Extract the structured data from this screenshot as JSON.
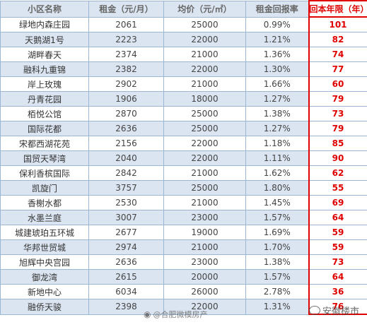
{
  "headers": [
    "小区名称",
    "租金（元/月）",
    "均价（元/㎡）",
    "租金回报率",
    "回本年限（年）"
  ],
  "rows": [
    [
      "绿地内森庄园",
      "2061",
      "25000",
      "0.99%",
      "101"
    ],
    [
      "天鹅湖1号",
      "2223",
      "22000",
      "1.21%",
      "82"
    ],
    [
      "湖畔春天",
      "2374",
      "21000",
      "1.36%",
      "74"
    ],
    [
      "融科九重锦",
      "2382",
      "22000",
      "1.30%",
      "77"
    ],
    [
      "岸上玫瑰",
      "2902",
      "21000",
      "1.66%",
      "60"
    ],
    [
      "丹青花园",
      "1906",
      "18000",
      "1.27%",
      "79"
    ],
    [
      "栢悦公馆",
      "2870",
      "25000",
      "1.38%",
      "73"
    ],
    [
      "国际花都",
      "2636",
      "25000",
      "1.27%",
      "79"
    ],
    [
      "宋都西湖花苑",
      "2156",
      "22000",
      "1.18%",
      "85"
    ],
    [
      "国贸天琴湾",
      "2040",
      "22000",
      "1.11%",
      "90"
    ],
    [
      "保利香槟国际",
      "2842",
      "21000",
      "1.62%",
      "62"
    ],
    [
      "凯旋门",
      "3757",
      "25000",
      "1.80%",
      "55"
    ],
    [
      "香榭水都",
      "2530",
      "21000",
      "1.45%",
      "69"
    ],
    [
      "水墨兰庭",
      "3007",
      "23000",
      "1.57%",
      "64"
    ],
    [
      "城建琥珀五环城",
      "2677",
      "19000",
      "1.69%",
      "59"
    ],
    [
      "华邦世贸城",
      "2974",
      "21000",
      "1.70%",
      "59"
    ],
    [
      "旭辉中央宫园",
      "2636",
      "23000",
      "1.38%",
      "73"
    ],
    [
      "御龙湾",
      "2615",
      "20000",
      "1.57%",
      "64"
    ],
    [
      "新地中心",
      "6034",
      "26000",
      "2.78%",
      "36"
    ],
    [
      "融侨天骏",
      "2398",
      "22000",
      "1.31%",
      "76"
    ]
  ],
  "watermarks": {
    "weibo": "@合肥微模房产",
    "wechat": "安徽楼市"
  },
  "colors": {
    "header_bg": "#dbe5f1",
    "stripe_bg": "#dbe5f1",
    "border": "#9bb7d4",
    "highlight_red": "#e00000"
  }
}
